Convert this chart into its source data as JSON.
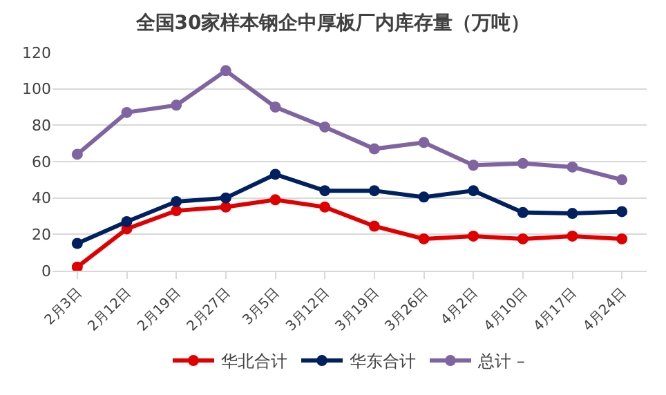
{
  "chart_data": {
    "type": "line",
    "title": "全国30家样本钢企中厚板厂内库存量（万吨）",
    "categories": [
      "2月3日",
      "2月12日",
      "2月19日",
      "2月27日",
      "3月5日",
      "3月12日",
      "3月19日",
      "3月26日",
      "4月2日",
      "4月10日",
      "4月17日",
      "4月24日"
    ],
    "series": [
      {
        "name": "华北合计",
        "color": "#e00000",
        "values": [
          2,
          23,
          33,
          35,
          39,
          35,
          24.5,
          17.5,
          19,
          17.5,
          19,
          17.5
        ]
      },
      {
        "name": "华东合计",
        "color": "#002060",
        "values": [
          15,
          27,
          38,
          40,
          53,
          44,
          44,
          40.5,
          44,
          32,
          31.5,
          32.5
        ]
      },
      {
        "name": "总计 –",
        "color": "#8064a2",
        "values": [
          64,
          87,
          91,
          110,
          90,
          79,
          67,
          70.5,
          58,
          59,
          57,
          50
        ]
      }
    ],
    "ylim": [
      0,
      120
    ],
    "yticks": [
      0,
      20,
      40,
      60,
      80,
      100,
      120
    ],
    "grid": "y",
    "legend": "bottom",
    "marker": "circle",
    "line_style": "solid"
  }
}
